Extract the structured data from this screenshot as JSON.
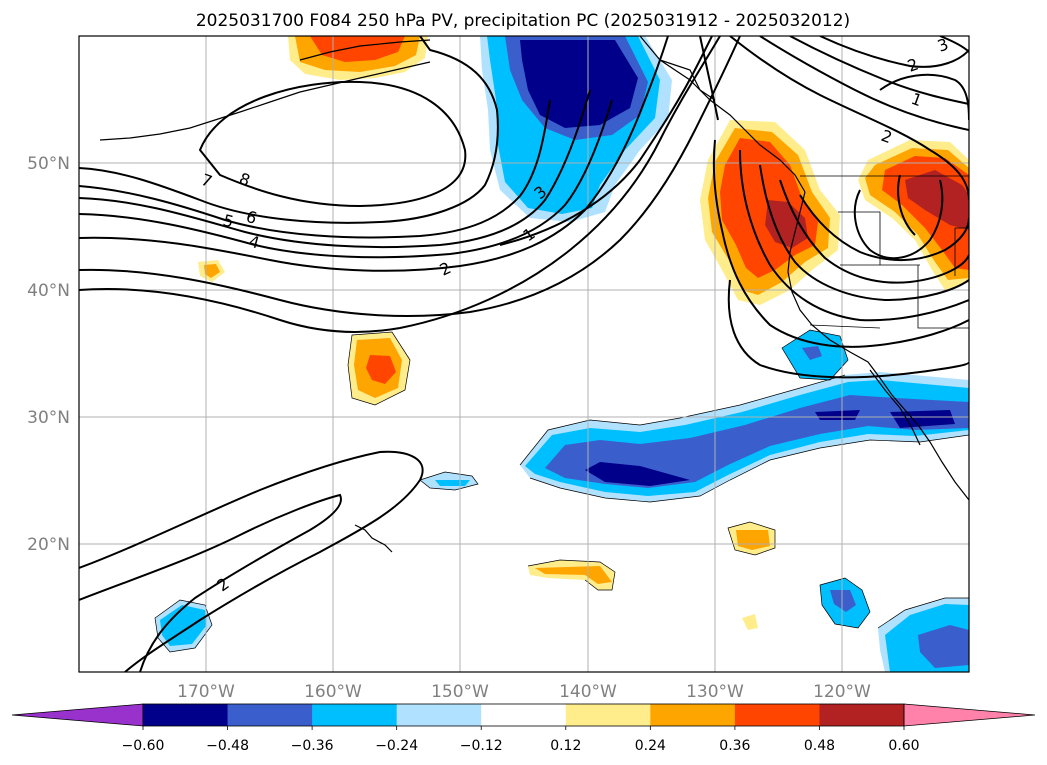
{
  "chart_data": {
    "type": "contour-map",
    "title": "2025031700 F084 250 hPa PV, precipitation PC (2025031912 - 2025032012)",
    "lon_range": [
      -180,
      -110
    ],
    "lat_range": [
      10,
      60
    ],
    "lon_ticks": [
      "170°W",
      "160°W",
      "150°W",
      "140°W",
      "130°W",
      "120°W"
    ],
    "lon_tick_values": [
      -170,
      -160,
      -150,
      -140,
      -130,
      -120
    ],
    "lat_ticks": [
      "20°N",
      "30°N",
      "40°N",
      "50°N"
    ],
    "lat_tick_values": [
      20,
      30,
      40,
      50
    ],
    "grid": true,
    "pv_contour_labels": [
      "8",
      "7",
      "6",
      "5",
      "4",
      "3",
      "2",
      "1",
      "2",
      "1",
      "2",
      "3",
      "2"
    ],
    "colorbar": {
      "orientation": "horizontal",
      "extend": "both",
      "levels": [
        -0.6,
        -0.48,
        -0.36,
        -0.24,
        -0.12,
        0.12,
        0.24,
        0.36,
        0.48,
        0.6
      ],
      "tick_labels": [
        "−0.60",
        "−0.48",
        "−0.36",
        "−0.24",
        "−0.12",
        "0.12",
        "0.24",
        "0.36",
        "0.48",
        "0.60"
      ],
      "colors": [
        "#9932cc",
        "#00008b",
        "#3a5fcd",
        "#00bfff",
        "#b0e2ff",
        "#ffffff",
        "#ffec8b",
        "#ffa500",
        "#ff4500",
        "#b22222",
        "#ff82ab"
      ]
    }
  }
}
